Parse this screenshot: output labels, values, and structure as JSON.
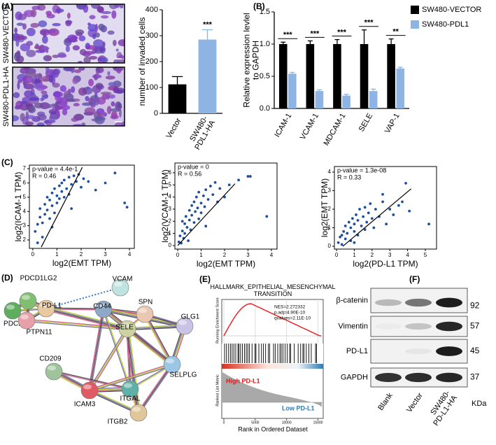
{
  "panel_labels": [
    "(A)",
    "(B)",
    "(C)",
    "(D)",
    "(E)",
    "(F)"
  ],
  "micrographs": [
    "SW480-VECTOR",
    "SW480-PDL1-HA"
  ],
  "chart_data": [
    {
      "type": "bar",
      "ylabel": "number of invaded cells",
      "categories": [
        "Vector",
        "SW480-\nPDL1-HA"
      ],
      "values": [
        112,
        285
      ],
      "errors": [
        30,
        38
      ],
      "colors": [
        "#000000",
        "#8db4e2"
      ],
      "significance": "***",
      "ylim": [
        0,
        400
      ],
      "yticks": [
        0,
        100,
        200,
        300,
        400
      ]
    },
    {
      "type": "bar",
      "ylabel": "Relative expression levlel\nto GAPDH",
      "categories": [
        "ICAM-1",
        "VCAM-1",
        "MDCAM-1",
        "SELE",
        "VAP-1"
      ],
      "series": [
        {
          "name": "SW480-VECTOR",
          "color": "#000000",
          "values": [
            1.0,
            1.0,
            1.0,
            1.0,
            1.0
          ],
          "errors": [
            0.03,
            0.05,
            0.07,
            0.22,
            0.08
          ]
        },
        {
          "name": "SW480-PDL1",
          "color": "#8db4e2",
          "values": [
            0.54,
            0.27,
            0.2,
            0.27,
            0.62
          ],
          "errors": [
            0.02,
            0.02,
            0.02,
            0.03,
            0.02
          ]
        }
      ],
      "significance": [
        "***",
        "***",
        "***",
        "***",
        "**"
      ],
      "ylim": [
        0,
        1.5
      ],
      "yticks": [
        {
          "value": 0,
          "label": "0.0"
        },
        {
          "value": 0.5,
          "label": "0.5"
        },
        {
          "value": 1,
          "label": "1.0"
        },
        {
          "value": 1.5,
          "label": "1.5"
        }
      ],
      "legend": "right"
    },
    {
      "type": "scatter",
      "xlabel": "log2(EMT TPM)",
      "ylabel": "log2(ICAM-1 TPM)",
      "annotations": [
        "p-value = 4.4e-1",
        "R = 0.46"
      ],
      "color": "#1f4e9c",
      "fit_color": "#000000",
      "x": [
        0.1,
        0.2,
        0.3,
        0.3,
        0.4,
        0.5,
        0.5,
        0.6,
        0.6,
        0.7,
        0.7,
        0.8,
        0.8,
        0.9,
        0.9,
        1.0,
        1.0,
        1.1,
        1.1,
        1.2,
        1.2,
        1.3,
        1.3,
        1.4,
        1.5,
        1.5,
        1.6,
        1.7,
        1.8,
        1.9,
        2.0,
        2.1,
        2.3,
        2.6,
        3.0,
        3.4,
        3.8,
        3.9,
        0.4,
        0.2,
        1.6,
        0.8
      ],
      "values": [
        2.6,
        3.1,
        3.6,
        4.2,
        3.2,
        4.5,
        3.8,
        5.0,
        4.1,
        3.5,
        4.8,
        5.3,
        4.4,
        5.6,
        3.9,
        5.1,
        4.6,
        5.8,
        4.9,
        5.4,
        6.0,
        5.0,
        6.2,
        5.6,
        6.4,
        5.2,
        5.9,
        6.5,
        6.1,
        6.6,
        5.7,
        6.3,
        6.1,
        5.5,
        6.0,
        6.7,
        4.6,
        4.3,
        2.2,
        1.8,
        4.2,
        2.9
      ],
      "fit": [
        [
          0.35,
          1.5
        ],
        [
          2.05,
          7.1
        ]
      ],
      "xlim": [
        -0.14,
        4.2
      ],
      "ylim": [
        1.41,
        7.25
      ],
      "xticks": [
        0,
        1,
        2,
        3,
        4
      ],
      "yticks": [
        2,
        3,
        4,
        5,
        6,
        7
      ]
    },
    {
      "type": "scatter",
      "xlabel": "log2(EMT TPM)",
      "ylabel": "log2(VCAM-1 TPM)",
      "annotations": [
        "p-value = 0",
        "R = 0.56"
      ],
      "color": "#1f4e9c",
      "fit_color": "#000000",
      "x": [
        0.05,
        0.1,
        0.15,
        0.2,
        0.25,
        0.3,
        0.3,
        0.35,
        0.4,
        0.45,
        0.5,
        0.5,
        0.55,
        0.6,
        0.6,
        0.7,
        0.7,
        0.75,
        0.8,
        0.85,
        0.9,
        0.9,
        1.0,
        1.0,
        1.1,
        1.15,
        1.2,
        1.3,
        1.4,
        1.5,
        1.6,
        1.7,
        1.8,
        2.0,
        2.2,
        2.6,
        3.0,
        3.1,
        3.8,
        0.2,
        1.2
      ],
      "values": [
        0.3,
        0.8,
        0.2,
        1.2,
        0.6,
        1.8,
        1.0,
        2.4,
        1.5,
        0.4,
        2.1,
        2.9,
        1.3,
        3.3,
        2.5,
        1.9,
        3.6,
        2.8,
        4.0,
        3.1,
        2.2,
        4.4,
        3.5,
        2.7,
        4.1,
        3.2,
        4.6,
        3.8,
        4.9,
        4.2,
        5.2,
        3.6,
        4.7,
        4.0,
        5.0,
        5.4,
        5.7,
        5.7,
        2.4,
        2.0,
        1.6
      ],
      "fit": [
        [
          0,
          0
        ],
        [
          2.45,
          5.1
        ]
      ],
      "xlim": [
        -0.12,
        4.24
      ],
      "ylim": [
        -0.29,
        6.8
      ],
      "xticks": [
        0,
        1,
        2,
        3,
        4
      ],
      "yticks": [
        0,
        1,
        2,
        3,
        4,
        5,
        6
      ]
    },
    {
      "type": "scatter",
      "xlabel": "log2(PD-L1 TPM)",
      "ylabel": "log2(EMT TPM)",
      "annotations": [
        "p-value = 1.3e-08",
        "R = 0.33"
      ],
      "color": "#1f4e9c",
      "fit_color": "#000000",
      "x": [
        0.1,
        0.2,
        0.3,
        0.4,
        0.5,
        0.5,
        0.6,
        0.7,
        0.8,
        0.8,
        0.9,
        1.0,
        1.0,
        1.1,
        1.2,
        1.2,
        1.3,
        1.4,
        1.5,
        1.6,
        1.6,
        1.7,
        1.8,
        1.9,
        2.0,
        2.1,
        2.2,
        2.4,
        2.6,
        2.8,
        3.0,
        3.2,
        3.5,
        3.7,
        3.9,
        4.1,
        5.2,
        2.6,
        0.3,
        1.0
      ],
      "values": [
        0.2,
        0.5,
        0.1,
        0.8,
        0.4,
        1.1,
        0.7,
        1.3,
        0.3,
        1.0,
        1.5,
        0.8,
        1.2,
        1.7,
        0.6,
        1.4,
        2.0,
        1.1,
        1.6,
        0.9,
        2.1,
        1.3,
        1.8,
        2.3,
        1.5,
        1.0,
        2.0,
        1.6,
        2.4,
        1.2,
        2.0,
        1.7,
        2.2,
        2.4,
        3.4,
        1.9,
        1.2,
        2.8,
        0.6,
        0.2
      ],
      "fit": [
        [
          0.35,
          0
        ],
        [
          4.2,
          3.1
        ]
      ],
      "xlim": [
        -0.12,
        5.63
      ],
      "ylim": [
        -0.15,
        4.3
      ],
      "xticks": [
        0,
        1,
        2,
        3,
        4,
        5
      ],
      "yticks": [
        0,
        1,
        2,
        3,
        4
      ]
    }
  ],
  "network": {
    "nodes": [
      "PDCD1LG2",
      "VCAM",
      "PD-L1",
      "CD44",
      "SPN",
      "PDCD1",
      "SELE",
      "GLG1",
      "PTPN11",
      "CD209",
      "SELPLG",
      "ICAM3",
      "ITGAL",
      "ITGB2"
    ]
  },
  "gsea": {
    "title": "HALLMARK_EPITHELIAL_MESENCHYMAL\nTRANSITION",
    "stats": [
      "NES=2.272332",
      "p.adj=4.90E-10",
      "qvalues=2.11E-10"
    ],
    "ylabel_top": "Running Enrichment Score",
    "ylabel_bottom": "Ranked List Metric",
    "high_label": "High PD-L1",
    "low_label": "Low PD-L1",
    "xlabel": "Rank in Ordered Dataset",
    "xticks": [
      0,
      5000,
      10000,
      15000
    ],
    "xlim": [
      0,
      15500
    ]
  },
  "blot": {
    "rows": [
      "β-catenin",
      "Vimentin",
      "PD-L1",
      "GAPDH"
    ],
    "kda": [
      92,
      57,
      45,
      37
    ],
    "kda_unit": "KDa",
    "columns": [
      "Blank",
      "Vector",
      "SW480-\nPD-L1-HA"
    ]
  }
}
